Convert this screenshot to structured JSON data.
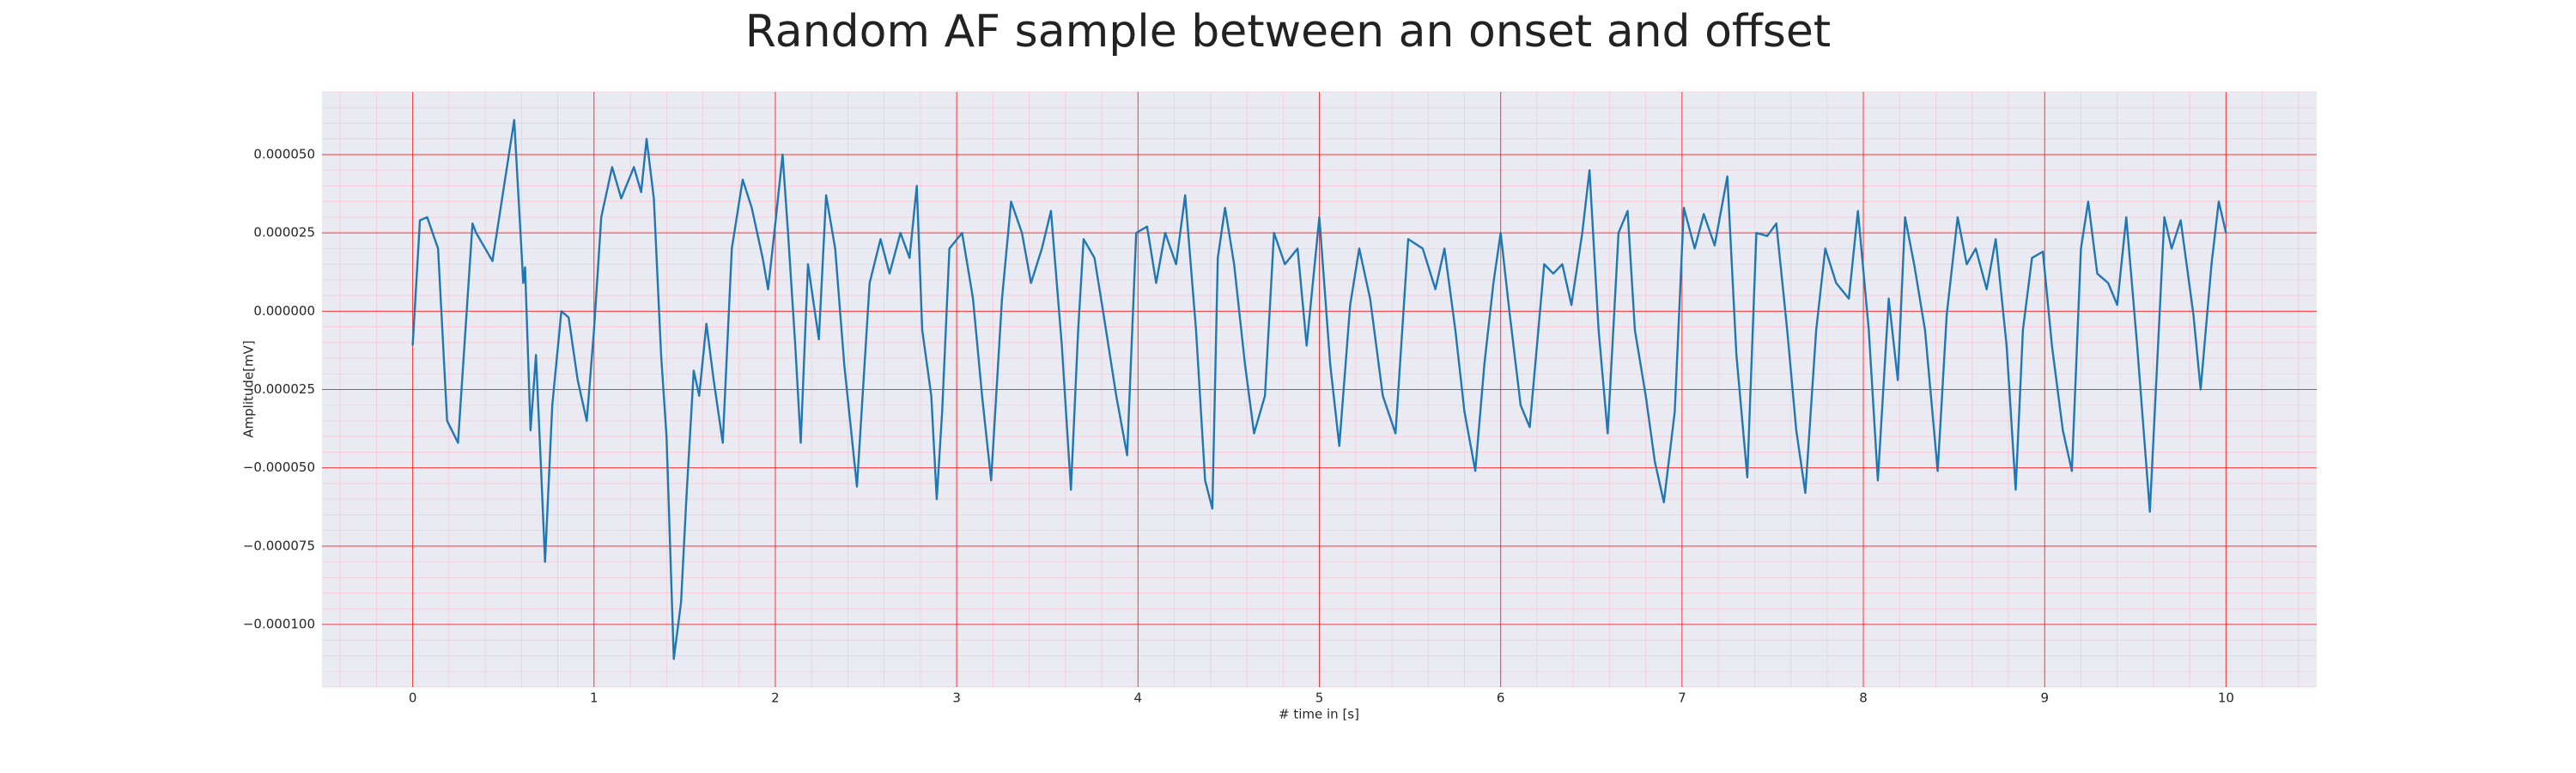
{
  "chart_data": {
    "type": "line",
    "title": "Random AF sample between an onset and offset",
    "x_label": "# time in [s]",
    "y_label": "Amplitude[mV]",
    "xlim": [
      -0.5,
      10.5
    ],
    "ylim": [
      -0.00012,
      7e-05
    ],
    "xticks": [
      0,
      1,
      2,
      3,
      4,
      5,
      6,
      7,
      8,
      9,
      10
    ],
    "yticks": [
      {
        "value": -0.0001,
        "label": "−0.000100"
      },
      {
        "value": -7.5e-05,
        "label": "−0.000075"
      },
      {
        "value": -5e-05,
        "label": "−0.000050"
      },
      {
        "value": -2.5e-05,
        "label": "−0.000025"
      },
      {
        "value": 0,
        "label": "0.000000"
      },
      {
        "value": 2.5e-05,
        "label": "0.000025"
      },
      {
        "value": 5e-05,
        "label": "0.000050"
      }
    ],
    "grid": true,
    "grid_color": "#ff0000",
    "minor_grid": {
      "x_step": 0.2,
      "y_step": 5e-06,
      "color": "#ffb6c1"
    },
    "background": "#eaeaf2",
    "x": [
      0,
      0.04,
      0.08,
      0.14,
      0.19,
      0.25,
      0.33,
      0.35,
      0.44,
      0.56,
      0.61,
      0.62,
      0.65,
      0.68,
      0.71,
      0.73,
      0.77,
      0.82,
      0.86,
      0.91,
      0.96,
      1.0,
      1.04,
      1.1,
      1.15,
      1.22,
      1.26,
      1.29,
      1.33,
      1.37,
      1.4,
      1.44,
      1.48,
      1.51,
      1.55,
      1.58,
      1.62,
      1.66,
      1.71,
      1.76,
      1.82,
      1.87,
      1.93,
      1.96,
      2.0,
      2.04,
      2.07,
      2.11,
      2.14,
      2.18,
      2.24,
      2.28,
      2.33,
      2.38,
      2.45,
      2.52,
      2.58,
      2.63,
      2.69,
      2.74,
      2.78,
      2.81,
      2.86,
      2.89,
      2.92,
      2.96,
      3.03,
      3.09,
      3.14,
      3.19,
      3.25,
      3.3,
      3.36,
      3.41,
      3.47,
      3.52,
      3.58,
      3.63,
      3.67,
      3.7,
      3.76,
      3.81,
      3.88,
      3.94,
      3.99,
      4.05,
      4.1,
      4.15,
      4.21,
      4.26,
      4.32,
      4.37,
      4.41,
      4.44,
      4.48,
      4.53,
      4.59,
      4.64,
      4.7,
      4.75,
      4.81,
      4.88,
      4.93,
      5.0,
      5.06,
      5.11,
      5.17,
      5.22,
      5.28,
      5.35,
      5.42,
      5.49,
      5.57,
      5.64,
      5.69,
      5.75,
      5.8,
      5.86,
      5.91,
      5.96,
      6.0,
      6.05,
      6.11,
      6.16,
      6.24,
      6.29,
      6.34,
      6.39,
      6.45,
      6.49,
      6.54,
      6.59,
      6.65,
      6.7,
      6.74,
      6.8,
      6.85,
      6.9,
      6.96,
      7.01,
      7.07,
      7.12,
      7.18,
      7.25,
      7.3,
      7.36,
      7.41,
      7.47,
      7.52,
      7.58,
      7.63,
      7.68,
      7.74,
      7.79,
      7.85,
      7.92,
      7.97,
      8.03,
      8.08,
      8.14,
      8.19,
      8.23,
      8.28,
      8.34,
      8.41,
      8.46,
      8.52,
      8.57,
      8.62,
      8.68,
      8.73,
      8.79,
      8.84,
      8.88,
      8.93,
      8.99,
      9.04,
      9.1,
      9.15,
      9.2,
      9.24,
      9.29,
      9.35,
      9.4,
      9.45,
      9.51,
      9.58,
      9.62,
      9.66,
      9.7,
      9.75,
      9.82,
      9.86,
      9.92,
      9.96,
      10.0
    ],
    "series": [
      {
        "color": "#1f77b4",
        "values": [
          -1.1e-05,
          2.9e-05,
          3e-05,
          2e-05,
          -3.5e-05,
          -4.2e-05,
          2.8e-05,
          2.5e-05,
          1.6e-05,
          6.1e-05,
          9e-06,
          1.4e-05,
          -3.8e-05,
          -1.4e-05,
          -5.3e-05,
          -8e-05,
          -3e-05,
          0,
          -2e-06,
          -2.2e-05,
          -3.5e-05,
          -6e-06,
          3e-05,
          4.6e-05,
          3.6e-05,
          4.6e-05,
          3.8e-05,
          5.5e-05,
          3.6e-05,
          -1.4e-05,
          -4e-05,
          -0.000111,
          -9.3e-05,
          -5.9e-05,
          -1.9e-05,
          -2.7e-05,
          -4e-06,
          -2.2e-05,
          -4.2e-05,
          2e-05,
          4.2e-05,
          3.3e-05,
          1.7e-05,
          7e-06,
          2.8e-05,
          5e-05,
          2.5e-05,
          -1.1e-05,
          -4.2e-05,
          1.5e-05,
          -9e-06,
          3.7e-05,
          2e-05,
          -1.7e-05,
          -5.6e-05,
          9e-06,
          2.3e-05,
          1.2e-05,
          2.5e-05,
          1.7e-05,
          4e-05,
          -6e-06,
          -2.7e-05,
          -6e-05,
          -3.2e-05,
          2e-05,
          2.5e-05,
          4e-06,
          -2.7e-05,
          -5.4e-05,
          4e-06,
          3.5e-05,
          2.5e-05,
          9e-06,
          2e-05,
          3.2e-05,
          -1.1e-05,
          -5.7e-05,
          -6e-06,
          2.3e-05,
          1.7e-05,
          -1e-06,
          -2.7e-05,
          -4.6e-05,
          2.5e-05,
          2.7e-05,
          9e-06,
          2.5e-05,
          1.5e-05,
          3.7e-05,
          -6e-06,
          -5.4e-05,
          -6.3e-05,
          1.7e-05,
          3.3e-05,
          1.5e-05,
          -1.7e-05,
          -3.9e-05,
          -2.7e-05,
          2.5e-05,
          1.5e-05,
          2e-05,
          -1.1e-05,
          3e-05,
          -1.7e-05,
          -4.3e-05,
          2e-06,
          2e-05,
          4e-06,
          -2.7e-05,
          -3.9e-05,
          2.3e-05,
          2e-05,
          7e-06,
          2e-05,
          -6e-06,
          -3.2e-05,
          -5.1e-05,
          -1.7e-05,
          9e-06,
          2.5e-05,
          -1e-06,
          -3e-05,
          -3.7e-05,
          1.5e-05,
          1.2e-05,
          1.5e-05,
          2e-06,
          2.5e-05,
          4.5e-05,
          -6e-06,
          -3.9e-05,
          2.5e-05,
          3.2e-05,
          -6e-06,
          -2.7e-05,
          -4.8e-05,
          -6.1e-05,
          -3.2e-05,
          3.3e-05,
          2e-05,
          3.1e-05,
          2.1e-05,
          4.3e-05,
          -1.4e-05,
          -5.3e-05,
          2.5e-05,
          2.4e-05,
          2.8e-05,
          -6e-06,
          -3.8e-05,
          -5.8e-05,
          -6e-06,
          2e-05,
          9e-06,
          4e-06,
          3.2e-05,
          -6e-06,
          -5.4e-05,
          4e-06,
          -2.2e-05,
          3e-05,
          1.5e-05,
          -6e-06,
          -5.1e-05,
          -1e-06,
          3e-05,
          1.5e-05,
          2e-05,
          7e-06,
          2.3e-05,
          -1.1e-05,
          -5.7e-05,
          -6e-06,
          1.7e-05,
          1.9e-05,
          -1.1e-05,
          -3.8e-05,
          -5.1e-05,
          2e-05,
          3.5e-05,
          1.2e-05,
          9e-06,
          2e-06,
          3e-05,
          -1.1e-05,
          -6.4e-05,
          -1.7e-05,
          3e-05,
          2e-05,
          2.9e-05,
          -1e-06,
          -2.5e-05,
          1.5e-05,
          3.5e-05,
          2.5e-05
        ]
      }
    ]
  }
}
